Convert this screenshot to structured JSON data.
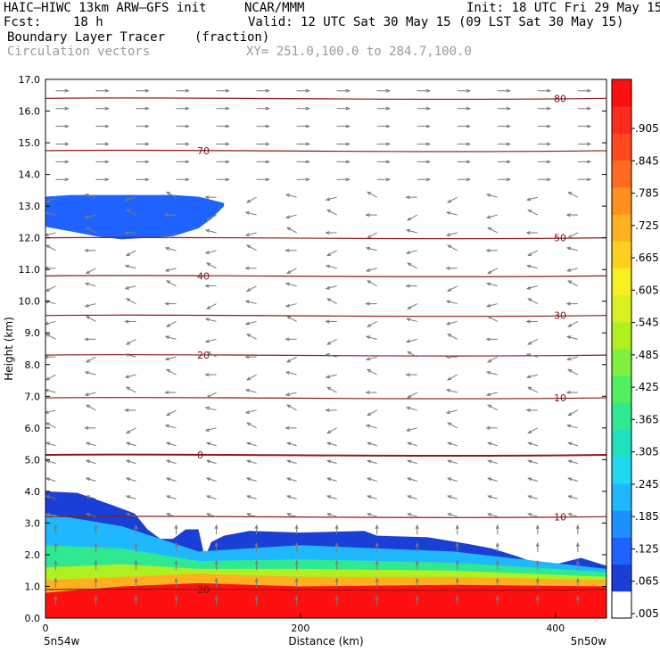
{
  "header": {
    "model": "HAIC–HIWC 13km ARW–GFS init",
    "org": "NCAR/MMM",
    "init": "Init: 18 UTC Fri 29 May 15",
    "fcst_label": "Fcst:",
    "fcst_value": "18 h",
    "valid": "Valid: 12 UTC Sat 30 May 15 (09 LST Sat 30 May 15)",
    "field1": "Boundary Layer Tracer",
    "field1_unit": "(fraction)",
    "field2": "Circulation vectors",
    "xy": "XY= 251.0,100.0 to 284.7,100.0"
  },
  "colors": {
    "contour": "#8b1a1a",
    "vector": "#7a7a7a",
    "colorbar": [
      "#ffffff",
      "#1a3fd6",
      "#1e63ff",
      "#1e90ff",
      "#1fb8ff",
      "#20d8f0",
      "#20e0c0",
      "#30e890",
      "#50f060",
      "#80f040",
      "#b0f020",
      "#d8f020",
      "#f8f020",
      "#ffd020",
      "#ffb020",
      "#ff9020",
      "#ff6a20",
      "#ff4a20",
      "#ff2a20",
      "#ff1010"
    ]
  },
  "chart_data": {
    "type": "heatmap",
    "xlabel": "Distance (km)",
    "ylabel": "Height (km)",
    "xlim": [
      0,
      440
    ],
    "ylim": [
      0,
      17
    ],
    "x_ticks": [
      "0",
      "200",
      "400"
    ],
    "y_ticks": [
      "0.0",
      "1.0",
      "2.0",
      "3.0",
      "4.0",
      "5.0",
      "6.0",
      "7.0",
      "8.0",
      "9.0",
      "10.0",
      "11.0",
      "12.0",
      "13.0",
      "14.0",
      "15.0",
      "16.0",
      "17.0"
    ],
    "x_end_labels": [
      "5n54w",
      "5n50w"
    ],
    "colorbar_labels": [
      ".005",
      ".065",
      ".125",
      ".185",
      ".245",
      ".305",
      ".365",
      ".425",
      ".485",
      ".545",
      ".605",
      ".665",
      ".725",
      ".785",
      ".845",
      ".905"
    ],
    "tracer_boundary_km": [
      [
        0,
        4.0
      ],
      [
        25,
        3.95
      ],
      [
        50,
        3.6
      ],
      [
        70,
        3.3
      ],
      [
        80,
        2.8
      ],
      [
        90,
        2.5
      ],
      [
        100,
        2.5
      ],
      [
        110,
        2.8
      ],
      [
        120,
        2.8
      ],
      [
        125,
        1.9
      ],
      [
        130,
        2.4
      ],
      [
        140,
        2.6
      ],
      [
        160,
        2.75
      ],
      [
        200,
        2.7
      ],
      [
        250,
        2.75
      ],
      [
        260,
        2.6
      ],
      [
        300,
        2.55
      ],
      [
        330,
        2.35
      ],
      [
        350,
        2.2
      ],
      [
        370,
        1.95
      ],
      [
        380,
        1.8
      ],
      [
        400,
        1.7
      ],
      [
        420,
        1.9
      ],
      [
        440,
        1.65
      ]
    ],
    "upper_layer_km": {
      "x": [
        0,
        20,
        40,
        60,
        80,
        100,
        120,
        130,
        140
      ],
      "top": [
        13.3,
        13.35,
        13.35,
        13.35,
        13.35,
        13.35,
        13.3,
        13.2,
        13.1
      ],
      "bottom": [
        12.35,
        12.2,
        12.05,
        11.95,
        12.0,
        12.05,
        12.3,
        12.6,
        13.0
      ]
    },
    "bands_km": [
      {
        "value": 0.9,
        "top": [
          0.8,
          1.0,
          1.1,
          1.0,
          1.05,
          1.0
        ]
      },
      {
        "value": 0.7,
        "top": [
          1.2,
          1.3,
          1.4,
          1.3,
          1.3,
          1.2
        ]
      },
      {
        "value": 0.5,
        "top": [
          1.6,
          1.7,
          1.55,
          1.55,
          1.5,
          1.3
        ]
      },
      {
        "value": 0.3,
        "top": [
          2.3,
          2.2,
          1.8,
          1.85,
          1.75,
          1.45
        ]
      },
      {
        "value": 0.1,
        "top": [
          3.3,
          2.9,
          2.1,
          2.3,
          2.1,
          1.55
        ]
      }
    ],
    "bands_x_km": [
      0,
      60,
      120,
      200,
      320,
      440
    ],
    "contour_levels": [
      {
        "label": "20",
        "y": 0.9
      },
      {
        "label": "10",
        "y": 3.2
      },
      {
        "label": "0",
        "y": 5.15
      },
      {
        "label": "10",
        "y": 6.95
      },
      {
        "label": "20",
        "y": 8.3
      },
      {
        "label": "30",
        "y": 9.55
      },
      {
        "label": "40",
        "y": 10.8
      },
      {
        "label": "50",
        "y": 12.0
      },
      {
        "label": "70",
        "y": 14.75
      },
      {
        "label": "80",
        "y": 16.4
      }
    ]
  }
}
